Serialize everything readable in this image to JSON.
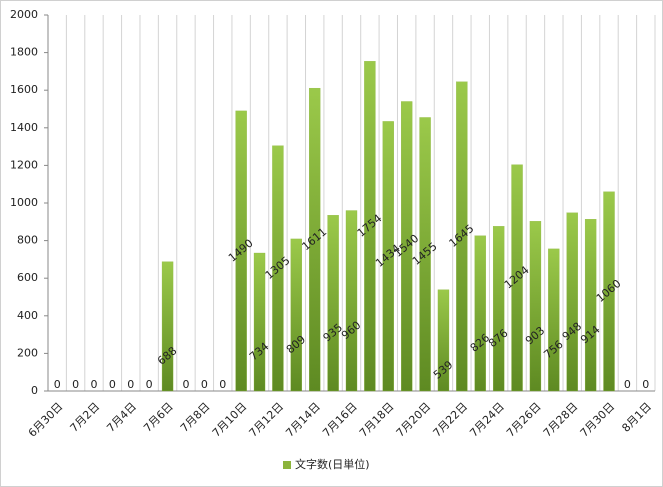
{
  "chart_data": {
    "type": "bar",
    "categories": [
      "6月30日",
      null,
      "7月2日",
      null,
      "7月4日",
      null,
      "7月6日",
      null,
      "7月8日",
      null,
      "7月10日",
      null,
      "7月12日",
      null,
      "7月14日",
      null,
      "7月16日",
      null,
      "7月18日",
      null,
      "7月20日",
      null,
      "7月22日",
      null,
      "7月24日",
      null,
      "7月26日",
      null,
      "7月28日",
      null,
      "7月30日",
      null,
      "8月1日"
    ],
    "series": [
      {
        "name": "文字数(日単位)",
        "color": "#8cb43c",
        "values": [
          0,
          0,
          0,
          0,
          0,
          0,
          688,
          0,
          0,
          0,
          1490,
          734,
          1305,
          809,
          1611,
          935,
          960,
          1754,
          1434,
          1540,
          1455,
          539,
          1645,
          826,
          876,
          1204,
          903,
          756,
          948,
          914,
          1060,
          0,
          0
        ]
      }
    ],
    "ylim": [
      0,
      2000
    ],
    "yticks": [
      0,
      200,
      400,
      600,
      800,
      1000,
      1200,
      1400,
      1600,
      1800,
      2000
    ],
    "grid": true,
    "legend": "bottom",
    "data_labels": true
  }
}
